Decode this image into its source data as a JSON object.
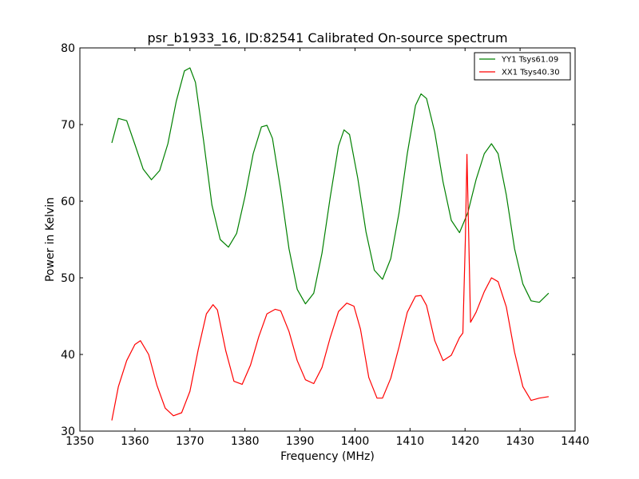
{
  "chart_data": {
    "type": "line",
    "title": "psr_b1933_16, ID:82541 Calibrated On-source spectrum",
    "xlabel": "Frequency (MHz)",
    "ylabel": "Power in Kelvin",
    "xlim": [
      1350,
      1440
    ],
    "ylim": [
      30,
      80
    ],
    "xticks": [
      1350,
      1360,
      1370,
      1380,
      1390,
      1400,
      1410,
      1420,
      1430,
      1440
    ],
    "yticks": [
      30,
      40,
      50,
      60,
      70,
      80
    ],
    "grid": false,
    "legend_position": "top-right",
    "series": [
      {
        "name": "YY1 Tsys61.09",
        "color": "#008000",
        "x": [
          1355.8,
          1357,
          1358.5,
          1360,
          1361.5,
          1363,
          1364.5,
          1366,
          1367.5,
          1369,
          1370,
          1371,
          1372.5,
          1374,
          1375.5,
          1377,
          1378.5,
          1380,
          1381.5,
          1383,
          1384,
          1385,
          1386.5,
          1388,
          1389.5,
          1391,
          1392.5,
          1394,
          1395.5,
          1397,
          1398,
          1399,
          1400.5,
          1402,
          1403.5,
          1405,
          1406.5,
          1408,
          1409.5,
          1411,
          1412,
          1413,
          1414.5,
          1416,
          1417.5,
          1419,
          1420.5,
          1422,
          1423.5,
          1424.8,
          1426,
          1427.5,
          1429,
          1430.5,
          1432,
          1433.5,
          1435.2
        ],
        "y": [
          67.6,
          70.8,
          70.5,
          67.4,
          64.2,
          62.8,
          64.0,
          67.5,
          73.0,
          77.0,
          77.4,
          75.5,
          67.8,
          59.5,
          55.0,
          54.0,
          55.8,
          60.6,
          66.2,
          69.7,
          69.9,
          68.2,
          61.5,
          53.8,
          48.5,
          46.6,
          48.0,
          53.2,
          60.5,
          67.2,
          69.3,
          68.7,
          63.0,
          56.0,
          51.0,
          49.8,
          52.5,
          58.5,
          66.2,
          72.5,
          74.0,
          73.4,
          69.0,
          62.5,
          57.5,
          55.9,
          58.5,
          62.8,
          66.2,
          67.5,
          66.2,
          60.8,
          53.8,
          49.2,
          47.0,
          46.8,
          48.0
        ]
      },
      {
        "name": "XX1 Tsys40.30",
        "color": "#ff0000",
        "x": [
          1355.8,
          1357,
          1358.5,
          1360,
          1361,
          1362.5,
          1364,
          1365.5,
          1367,
          1368.5,
          1370,
          1371.5,
          1373,
          1374.2,
          1375,
          1376.5,
          1378,
          1379.5,
          1381,
          1382.5,
          1384,
          1385.5,
          1386.5,
          1388,
          1389.5,
          1391,
          1392.5,
          1394,
          1395.5,
          1397,
          1398.5,
          1399.8,
          1401,
          1402.5,
          1404,
          1405,
          1406.5,
          1408,
          1409.5,
          1411,
          1412,
          1413,
          1414.5,
          1416,
          1417.5,
          1419,
          1419.6,
          1420.05,
          1420.35,
          1420.65,
          1421,
          1422,
          1423.5,
          1424.8,
          1426,
          1427.5,
          1429,
          1430.5,
          1432,
          1433.5,
          1435.2
        ],
        "y": [
          31.4,
          35.8,
          39.2,
          41.3,
          41.8,
          40.0,
          36.0,
          33.0,
          32.0,
          32.4,
          35.2,
          40.6,
          45.3,
          46.5,
          45.8,
          40.5,
          36.5,
          36.1,
          38.6,
          42.3,
          45.3,
          45.9,
          45.7,
          43.0,
          39.2,
          36.7,
          36.2,
          38.3,
          42.2,
          45.6,
          46.7,
          46.3,
          43.3,
          37.0,
          34.3,
          34.3,
          36.9,
          41.0,
          45.5,
          47.6,
          47.7,
          46.4,
          41.8,
          39.2,
          39.9,
          42.2,
          42.8,
          55.0,
          66.1,
          56.0,
          44.2,
          45.5,
          48.2,
          50.0,
          49.5,
          46.2,
          40.3,
          35.8,
          34.0,
          34.3,
          34.5
        ]
      }
    ]
  }
}
